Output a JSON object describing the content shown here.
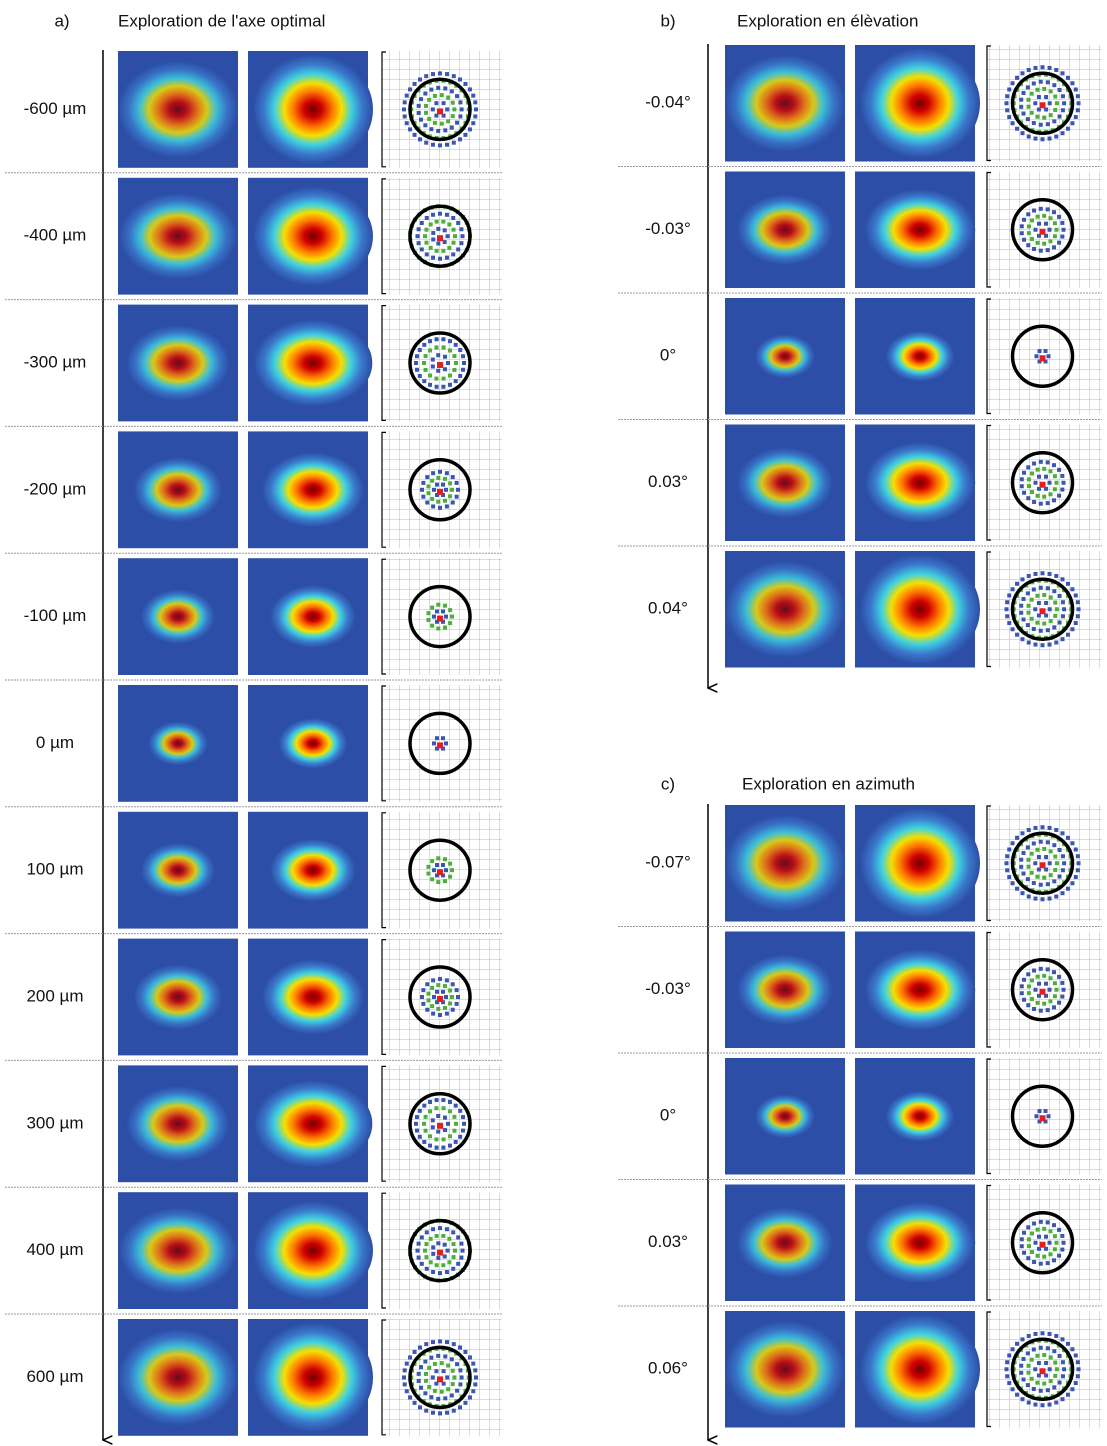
{
  "panels": [
    {
      "label": "a)",
      "title": "Exploration de l'axe optimal",
      "rows": [
        "-600 µm",
        "-400 µm",
        "-300 µm",
        "-200 µm",
        "-100 µm",
        "0 µm",
        "100 µm",
        "200 µm",
        "300 µm",
        "400 µm",
        "600 µm"
      ]
    },
    {
      "label": "b)",
      "title": "Exploration en élèvation",
      "rows": [
        "-0.04°",
        "-0.03°",
        "0°",
        "0.03°",
        "0.04°"
      ]
    },
    {
      "label": "c)",
      "title": "Exploration en azimuth",
      "rows": [
        "-0.07°",
        "-0.03°",
        "0°",
        "0.03°",
        "0.06°"
      ]
    }
  ]
}
